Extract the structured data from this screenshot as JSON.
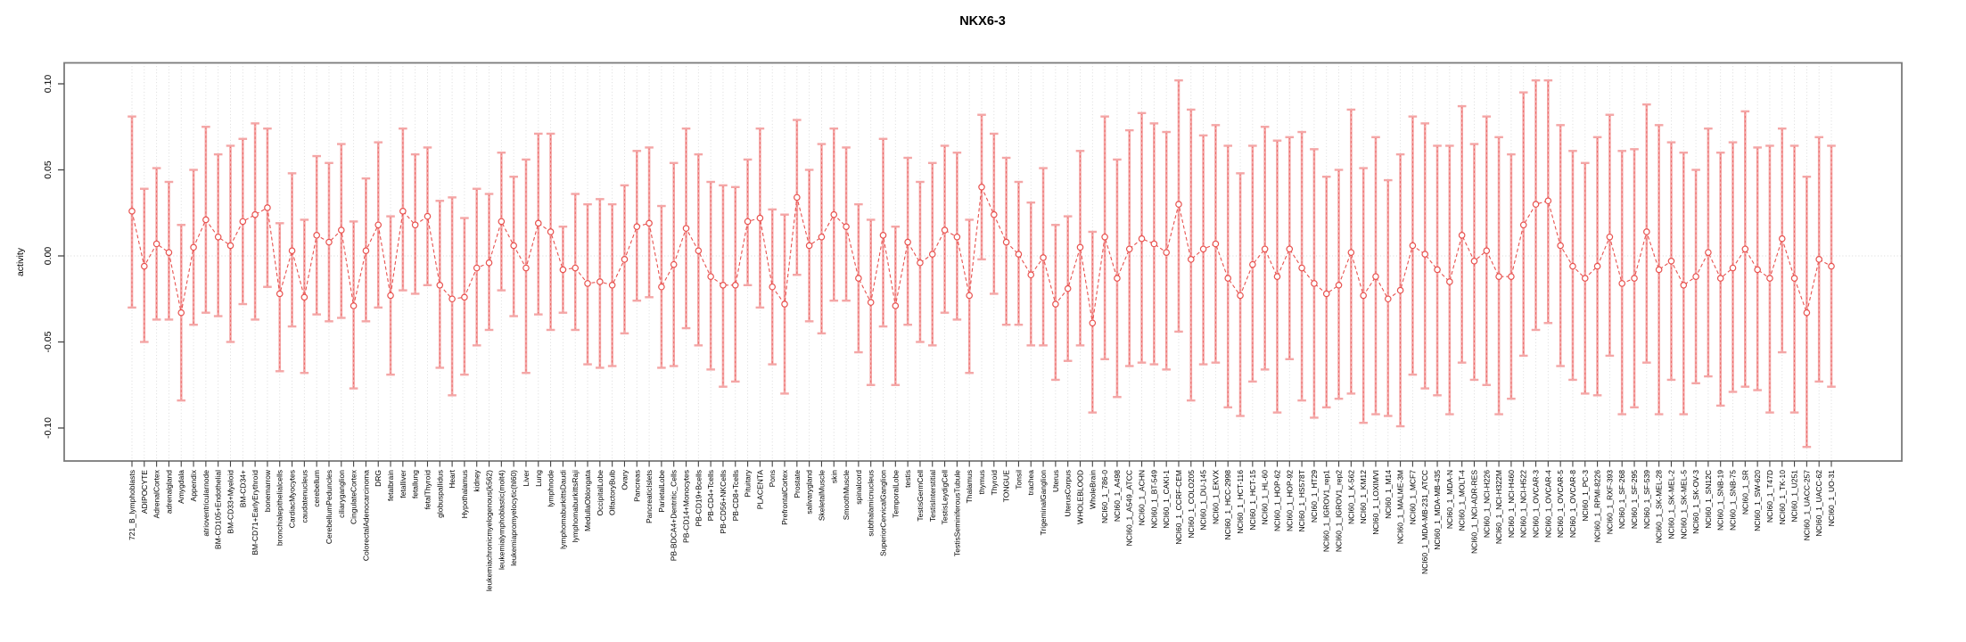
{
  "figure": {
    "title": "NKX6-3",
    "ylabel": "activity",
    "ytick_labels": [
      "0.10",
      "0.05",
      "0.00",
      "-0.05",
      "-0.10"
    ]
  },
  "chart_data": {
    "type": "line",
    "subtype": "errorbar-ci",
    "title": "NKX6-3",
    "xlabel": "",
    "ylabel": "activity",
    "ylim": [
      -0.115,
      0.112
    ],
    "ytick_values": [
      0.1,
      0.05,
      0.0,
      -0.05,
      -0.1
    ],
    "ytick_labels": [
      "0.10",
      "0.05",
      "0.00",
      "-0.05",
      "-0.10"
    ],
    "grid": "vertical dotted gridline per category; dotted horizontal line at 0",
    "legend_position": "none",
    "point_style": "open-circle with dashed connecting line and CI whiskers",
    "colors": {
      "point": "#e8524f",
      "line": "#e8524f",
      "errorbar": "#f4a6a6",
      "gridline": "#d8d8d8",
      "box": "#7a7a7a",
      "text": "#000000"
    },
    "categories": [
      "721_B_lymphoblasts",
      "ADIPOCYTE",
      "AdrenalCortex",
      "adrenalgland",
      "Amygdala",
      "Appendix",
      "atrioventricularnode",
      "BM-CD105+Endothelial",
      "BM-CD33+Myeloid",
      "BM-CD34+",
      "BM-CD71+EarlyErythroid",
      "bonemarrow",
      "bronchialepithelialcells",
      "CardiacMyocytes",
      "caudatenucleus",
      "cerebellum",
      "CerebellumPeduncles",
      "ciliaryganglion",
      "CingulateCortex",
      "ColorectalAdenocarcinoma",
      "DRG",
      "fetalbrain",
      "fetalliver",
      "fetallung",
      "fetalThyroid",
      "globuspallidus",
      "Heart",
      "Hypothalamus",
      "kidney",
      "leukemiachronicmyelogenous(k562)",
      "leukemialymphoblastic(molt4)",
      "leukemiapromyelocytic(hl60)",
      "Liver",
      "Lung",
      "lymphnode",
      "lymphomaburkittsDaudi",
      "lymphomaburkittsRaji",
      "MedullaOblongata",
      "OccipitalLobe",
      "OlfactoryBulb",
      "Ovary",
      "Pancreas",
      "PancreaticIslets",
      "ParietalLobe",
      "PB-BDCA4+Dentritic_Cells",
      "PB-CD14+Monocytes",
      "PB-CD19+Bcells",
      "PB-CD4+Tcells",
      "PB-CD56+NKCells",
      "PB-CD8+Tcells",
      "Pituitary",
      "PLACENTA",
      "Pons",
      "PrefrontalCortex",
      "Prostate",
      "salivarygland",
      "SkeletalMuscle",
      "skin",
      "SmoothMuscle",
      "spinalcord",
      "subthalamicnucleus",
      "SuperiorCervicalGanglion",
      "TemporalLobe",
      "testis",
      "TestisGermCell",
      "TestisInterstitial",
      "TestisLeydigCell",
      "TestisSeminiferousTubule",
      "Thalamus",
      "thymus",
      "Thyroid",
      "TONGUE",
      "Tonsil",
      "trachea",
      "TrigeminalGanglion",
      "Uterus",
      "UterusCorpus",
      "WHOLEBLOOD",
      "WholeBrain",
      "NCI60_1_786-0",
      "NCI60_1_A498",
      "NCI60_1_A549_ATCC",
      "NCI60_1_ACHN",
      "NCI60_1_BT-549",
      "NCI60_1_CAKI-1",
      "NCI60_1_CCRF-CEM",
      "NCI60_1_COLO205",
      "NCI60_1_DU-145",
      "NCI60_1_EKVX",
      "NCI60_1_HCC-2998",
      "NCI60_1_HCT-116",
      "NCI60_1_HCT-15",
      "NCI60_1_HL-60",
      "NCI60_1_HOP-62",
      "NCI60_1_HOP-92",
      "NCI60_1_HS578T",
      "NCI60_1_HT29",
      "NCI60_1_IGROV1_rep1",
      "NCI60_1_IGROV1_rep2",
      "NCI60_1_K-562",
      "NCI60_1_KM12",
      "NCI60_1_LOXIMVI",
      "NCI60_1_M14",
      "NCI60_1_MALME-3M",
      "NCI60_1_MCF7",
      "NCI60_1_MDA-MB-231_ATCC",
      "NCI60_1_MDA-MB-435",
      "NCI60_1_MDA-N",
      "NCI60_1_MOLT-4",
      "NCI60_1_NCI-ADR-RES",
      "NCI60_1_NCI-H226",
      "NCI60_1_NCI-H322M",
      "NCI60_1_NCI-H460",
      "NCI60_1_NCI-H522",
      "NCI60_1_OVCAR-3",
      "NCI60_1_OVCAR-4",
      "NCI60_1_OVCAR-5",
      "NCI60_1_OVCAR-8",
      "NCI60_1_PC-3",
      "NCI60_1_RPMI-8226",
      "NCI60_1_RXF-393",
      "NCI60_1_SF-268",
      "NCI60_1_SF-295",
      "NCI60_1_SF-539",
      "NCI60_1_SK-MEL-28",
      "NCI60_1_SK-MEL-2",
      "NCI60_1_SK-MEL-5",
      "NCI60_1_SK-OV-3",
      "NCI60_1_SN12C",
      "NCI60_1_SNB-19",
      "NCI60_1_SNB-75",
      "NCI60_1_SR",
      "NCI60_1_SW-620",
      "NCI60_1_T47D",
      "NCI60_1_TK-10",
      "NCI60_1_U251",
      "NCI60_1_UACC-257",
      "NCI60_1_UACC-62",
      "NCI60_1_UO-31"
    ],
    "series": [
      {
        "name": "mean_activity",
        "values": [
          0.026,
          -0.006,
          0.007,
          0.002,
          -0.033,
          0.005,
          0.021,
          0.011,
          0.006,
          0.02,
          0.024,
          0.028,
          -0.022,
          0.003,
          -0.024,
          0.012,
          0.008,
          0.015,
          -0.029,
          0.003,
          0.018,
          -0.023,
          0.026,
          0.018,
          0.023,
          -0.017,
          -0.025,
          -0.024,
          -0.007,
          -0.004,
          0.02,
          0.006,
          -0.007,
          0.019,
          0.014,
          -0.008,
          -0.007,
          -0.016,
          -0.015,
          -0.017,
          -0.002,
          0.017,
          0.019,
          -0.018,
          -0.005,
          0.016,
          0.003,
          -0.012,
          -0.017,
          -0.017,
          0.02,
          0.022,
          -0.018,
          -0.028,
          0.034,
          0.006,
          0.011,
          0.024,
          0.017,
          -0.013,
          -0.027,
          0.012,
          -0.029,
          0.008,
          -0.004,
          0.001,
          0.015,
          0.011,
          -0.023,
          0.04,
          0.024,
          0.008,
          0.001,
          -0.011,
          -0.001,
          -0.028,
          -0.019,
          0.005,
          -0.039,
          0.011,
          -0.013,
          0.004,
          0.01,
          0.007,
          0.002,
          0.03,
          -0.002,
          0.004,
          0.007,
          -0.013,
          -0.023,
          -0.005,
          0.004,
          -0.012,
          0.004,
          -0.007,
          -0.016,
          -0.022,
          -0.017,
          0.002,
          -0.023,
          -0.012,
          -0.025,
          -0.02,
          0.006,
          0.001,
          -0.008,
          -0.015,
          0.012,
          -0.003,
          0.003,
          -0.012,
          -0.012,
          0.018,
          0.03,
          0.032,
          0.006,
          -0.006,
          -0.013,
          -0.006,
          0.011,
          -0.016,
          -0.013,
          0.014,
          -0.008,
          -0.003,
          -0.017,
          -0.012,
          0.002,
          -0.013,
          -0.007,
          0.004,
          -0.008,
          -0.013,
          0.01,
          -0.013,
          -0.033,
          -0.002,
          -0.006
        ]
      },
      {
        "name": "ci_low",
        "values": [
          -0.03,
          -0.05,
          -0.037,
          -0.037,
          -0.084,
          -0.04,
          -0.033,
          -0.035,
          -0.05,
          -0.028,
          -0.037,
          -0.018,
          -0.067,
          -0.041,
          -0.068,
          -0.034,
          -0.038,
          -0.036,
          -0.077,
          -0.038,
          -0.03,
          -0.069,
          -0.02,
          -0.022,
          -0.017,
          -0.065,
          -0.081,
          -0.069,
          -0.052,
          -0.043,
          -0.02,
          -0.035,
          -0.068,
          -0.034,
          -0.043,
          -0.033,
          -0.043,
          -0.063,
          -0.065,
          -0.064,
          -0.045,
          -0.026,
          -0.024,
          -0.065,
          -0.064,
          -0.042,
          -0.052,
          -0.066,
          -0.076,
          -0.073,
          -0.017,
          -0.03,
          -0.063,
          -0.08,
          -0.011,
          -0.038,
          -0.045,
          -0.026,
          -0.026,
          -0.056,
          -0.075,
          -0.041,
          -0.075,
          -0.04,
          -0.05,
          -0.052,
          -0.033,
          -0.037,
          -0.068,
          -0.002,
          -0.022,
          -0.04,
          -0.04,
          -0.052,
          -0.052,
          -0.072,
          -0.061,
          -0.052,
          -0.091,
          -0.06,
          -0.082,
          -0.064,
          -0.062,
          -0.063,
          -0.066,
          -0.044,
          -0.084,
          -0.063,
          -0.062,
          -0.088,
          -0.093,
          -0.073,
          -0.066,
          -0.091,
          -0.06,
          -0.084,
          -0.094,
          -0.088,
          -0.083,
          -0.08,
          -0.097,
          -0.092,
          -0.093,
          -0.099,
          -0.069,
          -0.077,
          -0.081,
          -0.092,
          -0.062,
          -0.072,
          -0.075,
          -0.092,
          -0.083,
          -0.058,
          -0.043,
          -0.039,
          -0.064,
          -0.072,
          -0.08,
          -0.081,
          -0.058,
          -0.092,
          -0.088,
          -0.062,
          -0.092,
          -0.072,
          -0.092,
          -0.074,
          -0.07,
          -0.087,
          -0.079,
          -0.076,
          -0.078,
          -0.091,
          -0.056,
          -0.091,
          -0.111,
          -0.073,
          -0.076
        ]
      },
      {
        "name": "ci_high",
        "values": [
          0.081,
          0.039,
          0.051,
          0.043,
          0.018,
          0.05,
          0.075,
          0.059,
          0.064,
          0.068,
          0.077,
          0.074,
          0.019,
          0.048,
          0.021,
          0.058,
          0.054,
          0.065,
          0.02,
          0.045,
          0.066,
          0.023,
          0.074,
          0.059,
          0.063,
          0.032,
          0.034,
          0.022,
          0.039,
          0.036,
          0.06,
          0.046,
          0.056,
          0.071,
          0.071,
          0.017,
          0.036,
          0.03,
          0.033,
          0.03,
          0.041,
          0.061,
          0.063,
          0.029,
          0.054,
          0.074,
          0.059,
          0.043,
          0.041,
          0.04,
          0.056,
          0.074,
          0.027,
          0.024,
          0.079,
          0.05,
          0.065,
          0.074,
          0.063,
          0.03,
          0.021,
          0.068,
          0.017,
          0.057,
          0.043,
          0.054,
          0.064,
          0.06,
          0.021,
          0.082,
          0.071,
          0.057,
          0.043,
          0.031,
          0.051,
          0.018,
          0.023,
          0.061,
          0.014,
          0.081,
          0.056,
          0.073,
          0.083,
          0.077,
          0.072,
          0.102,
          0.085,
          0.07,
          0.076,
          0.064,
          0.048,
          0.064,
          0.075,
          0.067,
          0.069,
          0.072,
          0.062,
          0.046,
          0.05,
          0.085,
          0.051,
          0.069,
          0.044,
          0.059,
          0.081,
          0.077,
          0.064,
          0.064,
          0.087,
          0.065,
          0.081,
          0.069,
          0.059,
          0.095,
          0.102,
          0.102,
          0.076,
          0.061,
          0.054,
          0.069,
          0.082,
          0.061,
          0.062,
          0.088,
          0.076,
          0.066,
          0.06,
          0.05,
          0.074,
          0.06,
          0.066,
          0.084,
          0.063,
          0.064,
          0.074,
          0.064,
          0.046,
          0.069,
          0.064
        ]
      }
    ]
  }
}
